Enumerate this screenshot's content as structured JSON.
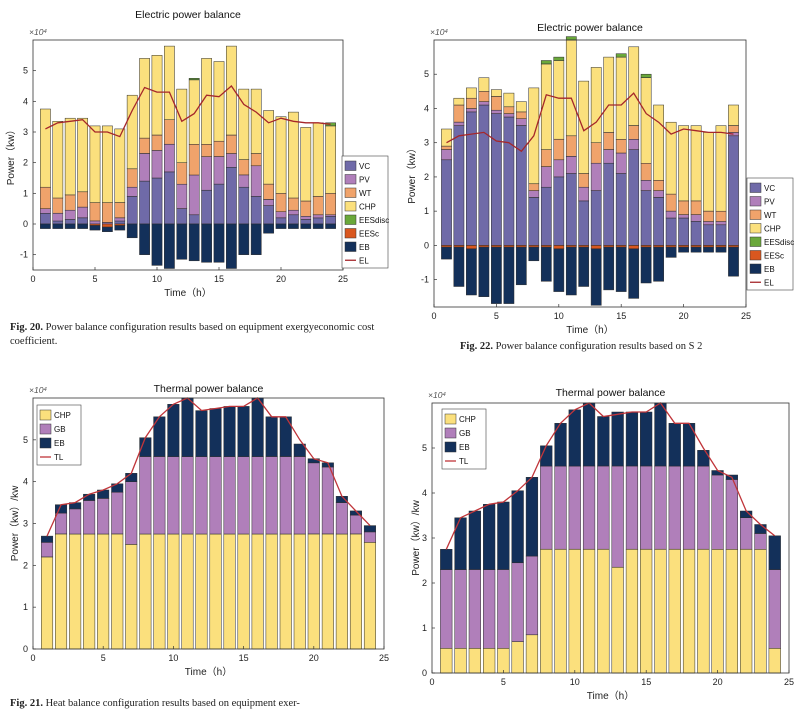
{
  "colors": {
    "VC": "#6f6aa8",
    "PV": "#b07fba",
    "WT": "#f0a36b",
    "CHP": "#fbe07d",
    "EESdisc": "#6aa83a",
    "EESc": "#d9571f",
    "EB": "#13305a",
    "EL": "#a5262a",
    "GB": "#b07fba",
    "TL": "#c0353a"
  },
  "captions": {
    "fig20_label": "Fig. 20.",
    "fig20_text": " Power balance configuration results based on equipment exergyeconomic cost coefficient.",
    "fig22_label": "Fig. 22.",
    "fig22_text": " Power balance configuration results based on S 2",
    "fig21_label": "Fig. 21.",
    "fig21_text": " Heat balance configuration results based on equipment exer-"
  },
  "chart_data": [
    {
      "id": "fig20",
      "type": "bar",
      "title": "Electric power balance",
      "xlabel": "Time（h）",
      "ylabel": "Power（kw）",
      "exponent": "×10⁴",
      "xlim": [
        0,
        25
      ],
      "ylim": [
        -1.5,
        6
      ],
      "xticks": [
        0,
        5,
        10,
        15,
        20,
        25
      ],
      "yticks": [
        -1,
        0,
        1,
        2,
        3,
        4,
        5
      ],
      "x": [
        1,
        2,
        3,
        4,
        5,
        6,
        7,
        8,
        9,
        10,
        11,
        12,
        13,
        14,
        15,
        16,
        17,
        18,
        19,
        20,
        21,
        22,
        23,
        24
      ],
      "stack_positive": [
        "VC",
        "PV",
        "WT",
        "CHP",
        "EESdisc"
      ],
      "stack_negative": [
        "EESc",
        "EB"
      ],
      "series": [
        {
          "name": "VC",
          "values": [
            0.35,
            0.1,
            0.15,
            0.2,
            0.0,
            0.0,
            0.1,
            0.9,
            1.4,
            1.5,
            1.7,
            0.5,
            0.3,
            1.1,
            1.3,
            1.85,
            1.2,
            0.9,
            0.6,
            0.2,
            0.3,
            0.15,
            0.2,
            0.25
          ]
        },
        {
          "name": "PV",
          "values": [
            0.15,
            0.25,
            0.3,
            0.35,
            0.1,
            0.05,
            0.1,
            0.3,
            0.9,
            0.9,
            0.9,
            0.8,
            1.3,
            1.1,
            0.9,
            0.45,
            0.4,
            1.0,
            0.2,
            0.2,
            0.15,
            0.1,
            0.1,
            0.05
          ]
        },
        {
          "name": "WT",
          "values": [
            0.7,
            0.5,
            0.5,
            0.5,
            0.6,
            0.65,
            0.5,
            0.6,
            0.5,
            0.5,
            0.8,
            0.7,
            1.0,
            0.4,
            0.5,
            0.6,
            0.5,
            0.4,
            0.5,
            0.6,
            0.4,
            0.5,
            0.6,
            0.7
          ]
        },
        {
          "name": "CHP",
          "values": [
            2.55,
            2.5,
            2.5,
            2.4,
            2.5,
            2.5,
            2.4,
            2.4,
            2.6,
            2.6,
            2.4,
            2.4,
            2.1,
            2.8,
            2.6,
            2.9,
            2.3,
            2.1,
            2.4,
            2.5,
            2.8,
            2.4,
            2.4,
            2.2
          ]
        },
        {
          "name": "EESdisc",
          "values": [
            0,
            0,
            0,
            0,
            0,
            0,
            0,
            0,
            0,
            0,
            0,
            0,
            0.05,
            0,
            0,
            0,
            0,
            0,
            0,
            0,
            0,
            0,
            0,
            0.1
          ]
        },
        {
          "name": "EESc",
          "values": [
            0,
            0,
            0,
            0,
            -0.05,
            -0.1,
            -0.05,
            0,
            0,
            0,
            0,
            0,
            0,
            0,
            0,
            0,
            0,
            0,
            0,
            0,
            0,
            0,
            0,
            0
          ]
        },
        {
          "name": "EB",
          "values": [
            -0.15,
            -0.15,
            -0.15,
            -0.15,
            -0.15,
            -0.15,
            -0.15,
            -0.45,
            -1.0,
            -1.35,
            -1.45,
            -1.15,
            -1.2,
            -1.25,
            -1.25,
            -1.45,
            -1.0,
            -1.0,
            -0.3,
            -0.15,
            -0.15,
            -0.15,
            -0.15,
            -0.15
          ]
        },
        {
          "name": "EL",
          "values": [
            3.1,
            3.3,
            3.35,
            3.4,
            3.0,
            3.0,
            2.85,
            3.7,
            4.45,
            4.3,
            4.3,
            3.35,
            3.6,
            4.2,
            4.15,
            4.5,
            3.9,
            3.65,
            3.3,
            3.45,
            3.35,
            3.3,
            3.3,
            3.25
          ]
        }
      ],
      "legend": [
        "VC",
        "PV",
        "WT",
        "CHP",
        "EESdisc",
        "EESc",
        "EB",
        "EL"
      ],
      "legend_position": "right"
    },
    {
      "id": "fig22",
      "type": "bar",
      "title": "Electric power balance",
      "xlabel": "Time（h）",
      "ylabel": "Power（kw）",
      "exponent": "×10⁴",
      "xlim": [
        0,
        25
      ],
      "ylim": [
        -1.8,
        6
      ],
      "xticks": [
        0,
        5,
        10,
        15,
        20,
        25
      ],
      "yticks": [
        -1,
        0,
        1,
        2,
        3,
        4,
        5
      ],
      "x": [
        1,
        2,
        3,
        4,
        5,
        6,
        7,
        8,
        9,
        10,
        11,
        12,
        13,
        14,
        15,
        16,
        17,
        18,
        19,
        20,
        21,
        22,
        23,
        24
      ],
      "stack_positive": [
        "VC",
        "PV",
        "WT",
        "CHP",
        "EESdisc"
      ],
      "stack_negative": [
        "EESc",
        "EB"
      ],
      "series": [
        {
          "name": "VC",
          "values": [
            2.5,
            3.5,
            3.9,
            4.1,
            3.85,
            3.75,
            3.5,
            1.4,
            1.7,
            2.0,
            2.1,
            1.3,
            1.6,
            2.4,
            2.1,
            2.8,
            1.6,
            1.4,
            0.8,
            0.8,
            0.7,
            0.6,
            0.6,
            3.2
          ]
        },
        {
          "name": "PV",
          "values": [
            0.3,
            0.1,
            0.1,
            0.1,
            0.1,
            0.1,
            0.2,
            0.2,
            0.6,
            0.5,
            0.5,
            0.4,
            0.8,
            0.4,
            0.6,
            0.3,
            0.3,
            0.2,
            0.2,
            0.1,
            0.2,
            0.1,
            0.1,
            0.1
          ]
        },
        {
          "name": "WT",
          "values": [
            0.1,
            0.5,
            0.3,
            0.3,
            0.4,
            0.2,
            0.2,
            0.2,
            0.5,
            0.6,
            0.6,
            0.4,
            0.6,
            0.5,
            0.4,
            0.4,
            0.5,
            0.3,
            0.5,
            0.4,
            0.4,
            0.3,
            0.3,
            0.2
          ]
        },
        {
          "name": "CHP",
          "values": [
            0.5,
            0.2,
            0.3,
            0.4,
            0.2,
            0.4,
            0.3,
            2.8,
            2.5,
            2.3,
            2.8,
            2.7,
            2.2,
            2.2,
            2.4,
            2.3,
            2.5,
            2.2,
            2.1,
            2.2,
            2.2,
            2.3,
            2.5,
            0.6
          ]
        },
        {
          "name": "EESdisc",
          "values": [
            0,
            0,
            0,
            0,
            0,
            0,
            0,
            0,
            0.1,
            0.1,
            0.1,
            0,
            0,
            0,
            0.1,
            0,
            0.1,
            0,
            0,
            0,
            0,
            0,
            0,
            0
          ]
        },
        {
          "name": "EESc",
          "values": [
            -0.05,
            -0.05,
            -0.1,
            -0.05,
            -0.05,
            -0.05,
            -0.05,
            -0.05,
            -0.05,
            -0.1,
            -0.05,
            -0.05,
            -0.1,
            -0.05,
            -0.05,
            -0.1,
            -0.05,
            -0.05,
            -0.05,
            -0.05,
            -0.05,
            -0.05,
            -0.05,
            -0.05
          ]
        },
        {
          "name": "EB",
          "values": [
            -0.35,
            -1.15,
            -1.35,
            -1.45,
            -1.65,
            -1.65,
            -1.1,
            -0.4,
            -1.0,
            -1.25,
            -1.4,
            -1.15,
            -1.65,
            -1.25,
            -1.3,
            -1.45,
            -1.05,
            -1.0,
            -0.3,
            -0.15,
            -0.15,
            -0.15,
            -0.15,
            -0.85
          ]
        },
        {
          "name": "EL",
          "values": [
            3.0,
            3.2,
            3.25,
            3.3,
            3.05,
            3.0,
            2.75,
            3.2,
            4.4,
            4.3,
            4.3,
            3.35,
            3.6,
            4.1,
            4.1,
            4.45,
            3.85,
            3.6,
            3.25,
            3.4,
            3.35,
            3.3,
            3.3,
            3.25
          ]
        }
      ],
      "legend": [
        "VC",
        "PV",
        "WT",
        "CHP",
        "EESdisc",
        "EESc",
        "EB",
        "EL"
      ],
      "legend_position": "right"
    },
    {
      "id": "fig21",
      "type": "bar",
      "title": "Thermal power balance",
      "xlabel": "Time（h）",
      "ylabel": "Power（kw）/kw",
      "exponent": "×10⁴",
      "xlim": [
        0,
        25
      ],
      "ylim": [
        0,
        6
      ],
      "xticks": [
        0,
        5,
        10,
        15,
        20,
        25
      ],
      "yticks": [
        0,
        1,
        2,
        3,
        4,
        5
      ],
      "x": [
        1,
        2,
        3,
        4,
        5,
        6,
        7,
        8,
        9,
        10,
        11,
        12,
        13,
        14,
        15,
        16,
        17,
        18,
        19,
        20,
        21,
        22,
        23,
        24
      ],
      "stack_positive": [
        "CHP",
        "GB",
        "EB"
      ],
      "stack_negative": [],
      "series": [
        {
          "name": "CHP",
          "values": [
            2.2,
            2.75,
            2.75,
            2.75,
            2.75,
            2.75,
            2.5,
            2.75,
            2.75,
            2.75,
            2.75,
            2.75,
            2.75,
            2.75,
            2.75,
            2.75,
            2.75,
            2.75,
            2.75,
            2.75,
            2.75,
            2.75,
            2.75,
            2.55
          ]
        },
        {
          "name": "GB",
          "values": [
            0.35,
            0.5,
            0.6,
            0.8,
            0.85,
            1.0,
            1.5,
            1.85,
            1.85,
            1.85,
            1.85,
            1.85,
            1.85,
            1.85,
            1.85,
            1.85,
            1.85,
            1.85,
            1.85,
            1.7,
            1.6,
            0.75,
            0.45,
            0.25
          ]
        },
        {
          "name": "EB",
          "values": [
            0.15,
            0.2,
            0.15,
            0.15,
            0.2,
            0.2,
            0.2,
            0.45,
            0.95,
            1.25,
            1.4,
            1.1,
            1.15,
            1.2,
            1.2,
            1.4,
            0.95,
            0.95,
            0.3,
            0.1,
            0.1,
            0.15,
            0.1,
            0.15
          ]
        },
        {
          "name": "TL",
          "values": [
            2.7,
            3.45,
            3.5,
            3.7,
            3.8,
            3.95,
            4.2,
            5.05,
            5.55,
            5.85,
            6.0,
            5.7,
            5.75,
            5.8,
            5.8,
            6.0,
            5.55,
            5.55,
            5.0,
            4.55,
            4.45,
            3.65,
            3.3,
            2.95
          ]
        }
      ],
      "legend": [
        "CHP",
        "GB",
        "EB",
        "TL"
      ],
      "legend_position": "top-left"
    },
    {
      "id": "fig23",
      "type": "bar",
      "title": "Thermal power balance",
      "xlabel": "Time（h）",
      "ylabel": "Power（kw）/kw",
      "exponent": "×10⁴",
      "xlim": [
        0,
        25
      ],
      "ylim": [
        0,
        6
      ],
      "xticks": [
        0,
        5,
        10,
        15,
        20,
        25
      ],
      "yticks": [
        0,
        1,
        2,
        3,
        4,
        5
      ],
      "x": [
        1,
        2,
        3,
        4,
        5,
        6,
        7,
        8,
        9,
        10,
        11,
        12,
        13,
        14,
        15,
        16,
        17,
        18,
        19,
        20,
        21,
        22,
        23,
        24
      ],
      "stack_positive": [
        "CHP",
        "GB",
        "EB"
      ],
      "stack_negative": [],
      "series": [
        {
          "name": "CHP",
          "values": [
            0.55,
            0.55,
            0.55,
            0.55,
            0.55,
            0.7,
            0.85,
            2.75,
            2.75,
            2.75,
            2.75,
            2.75,
            2.35,
            2.75,
            2.75,
            2.75,
            2.75,
            2.75,
            2.75,
            2.75,
            2.75,
            2.75,
            2.75,
            0.55
          ]
        },
        {
          "name": "GB",
          "values": [
            1.75,
            1.75,
            1.75,
            1.75,
            1.75,
            1.75,
            1.75,
            1.85,
            1.85,
            1.85,
            1.85,
            1.85,
            2.25,
            1.85,
            1.85,
            1.85,
            1.85,
            1.85,
            1.85,
            1.65,
            1.55,
            0.7,
            0.35,
            1.75
          ]
        },
        {
          "name": "EB",
          "values": [
            0.45,
            1.15,
            1.3,
            1.45,
            1.5,
            1.6,
            1.75,
            0.45,
            0.95,
            1.25,
            1.4,
            1.1,
            1.2,
            1.2,
            1.2,
            1.4,
            0.95,
            0.95,
            0.35,
            0.1,
            0.1,
            0.15,
            0.2,
            0.75
          ]
        },
        {
          "name": "TL",
          "values": [
            2.75,
            3.45,
            3.6,
            3.75,
            3.8,
            4.05,
            4.35,
            5.05,
            5.55,
            5.85,
            6.0,
            5.7,
            5.75,
            5.8,
            5.8,
            6.0,
            5.55,
            5.55,
            5.0,
            4.5,
            4.35,
            3.6,
            3.3,
            3.05
          ]
        }
      ],
      "legend": [
        "CHP",
        "GB",
        "EB",
        "TL"
      ],
      "legend_position": "top-left"
    }
  ]
}
